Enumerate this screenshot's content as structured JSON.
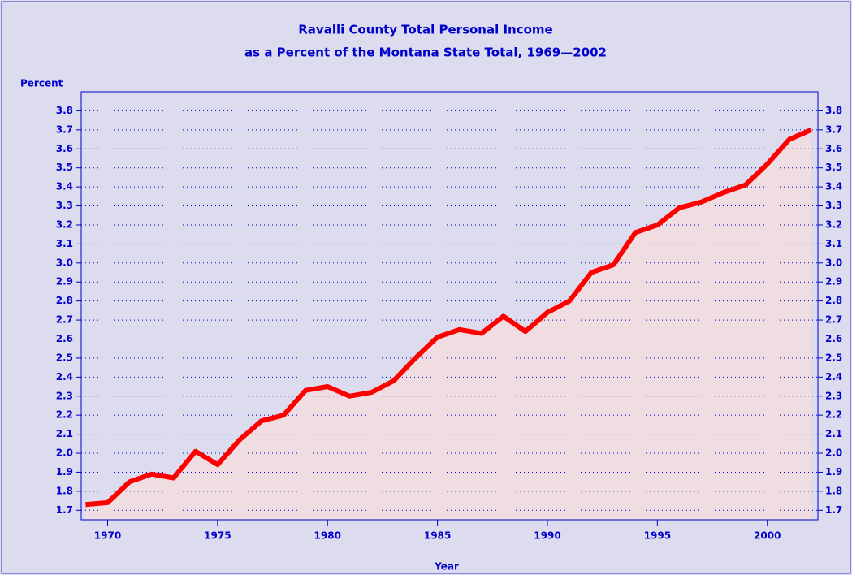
{
  "chart_data": {
    "type": "line",
    "title": "Ravalli County Total Personal Income",
    "subtitle": "as a Percent of the Montana State Total, 1969—2002",
    "ylabel": "Percent",
    "xlabel": "Year",
    "x": [
      1969,
      1970,
      1971,
      1972,
      1973,
      1974,
      1975,
      1976,
      1977,
      1978,
      1979,
      1980,
      1981,
      1982,
      1983,
      1984,
      1985,
      1986,
      1987,
      1988,
      1989,
      1990,
      1991,
      1992,
      1993,
      1994,
      1995,
      1996,
      1997,
      1998,
      1999,
      2000,
      2001,
      2002
    ],
    "values": [
      1.73,
      1.74,
      1.85,
      1.89,
      1.87,
      2.01,
      1.94,
      2.07,
      2.17,
      2.2,
      2.33,
      2.35,
      2.3,
      2.32,
      2.38,
      2.5,
      2.61,
      2.65,
      2.63,
      2.72,
      2.64,
      2.74,
      2.8,
      2.95,
      2.99,
      3.16,
      3.2,
      3.29,
      3.32,
      3.37,
      3.41,
      3.52,
      3.65,
      3.7
    ],
    "color": "#ff0000",
    "fill": "#f0dde2",
    "xlim": [
      1968.8,
      2002.3
    ],
    "xticks": [
      1970,
      1975,
      1980,
      1985,
      1990,
      1995,
      2000
    ],
    "ylim": [
      1.65,
      3.9
    ],
    "yticks": [
      1.7,
      1.8,
      1.9,
      {
        "value": 2,
        "label": "2.0"
      },
      2.1,
      2.2,
      2.3,
      2.4,
      2.5,
      2.6,
      2.7,
      2.8,
      2.9,
      {
        "value": 3,
        "label": "3.0"
      },
      3.1,
      3.2,
      3.3,
      3.4,
      3.5,
      3.6,
      3.7,
      3.8
    ],
    "grid": true
  }
}
